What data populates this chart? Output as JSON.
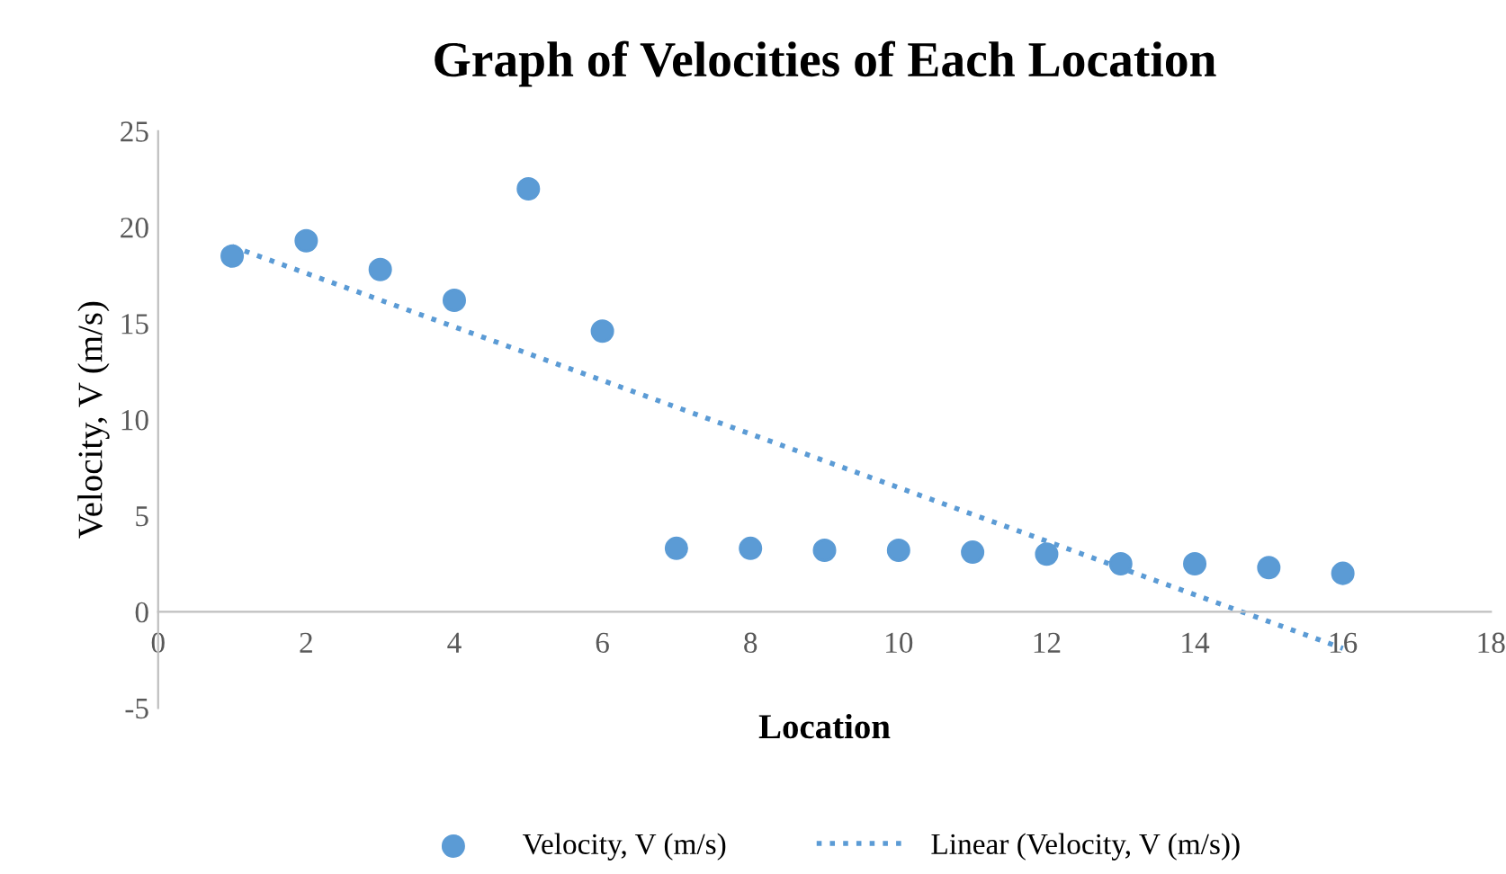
{
  "chart_data": {
    "type": "scatter",
    "title": "Graph of Velocities of Each Location",
    "xlabel": "Location",
    "ylabel": "Velocity, V (m/s)",
    "x": [
      1,
      2,
      3,
      4,
      5,
      6,
      7,
      8,
      9,
      10,
      11,
      12,
      13,
      14,
      15,
      16
    ],
    "series": [
      {
        "name": "Velocity, V (m/s)",
        "color": "#5b9bd5",
        "marker": "circle",
        "values": [
          18.5,
          19.3,
          17.8,
          16.2,
          22.0,
          14.6,
          3.3,
          3.3,
          3.2,
          3.2,
          3.1,
          3.0,
          2.5,
          2.5,
          2.3,
          2.0
        ]
      },
      {
        "name": "Linear (Velocity, V (m/s))",
        "color": "#5b9bd5",
        "type": "line",
        "line_style": "dotted",
        "marker": "none",
        "x": [
          1,
          16
        ],
        "values": [
          19.0,
          -1.9
        ]
      }
    ],
    "xlim": [
      0,
      18
    ],
    "xticks": [
      0,
      2,
      4,
      6,
      8,
      10,
      12,
      14,
      16,
      18
    ],
    "ylim": [
      -5,
      25
    ],
    "yticks": [
      -5,
      0,
      5,
      10,
      15,
      20,
      25
    ],
    "grid": false,
    "legend": "bottom"
  }
}
